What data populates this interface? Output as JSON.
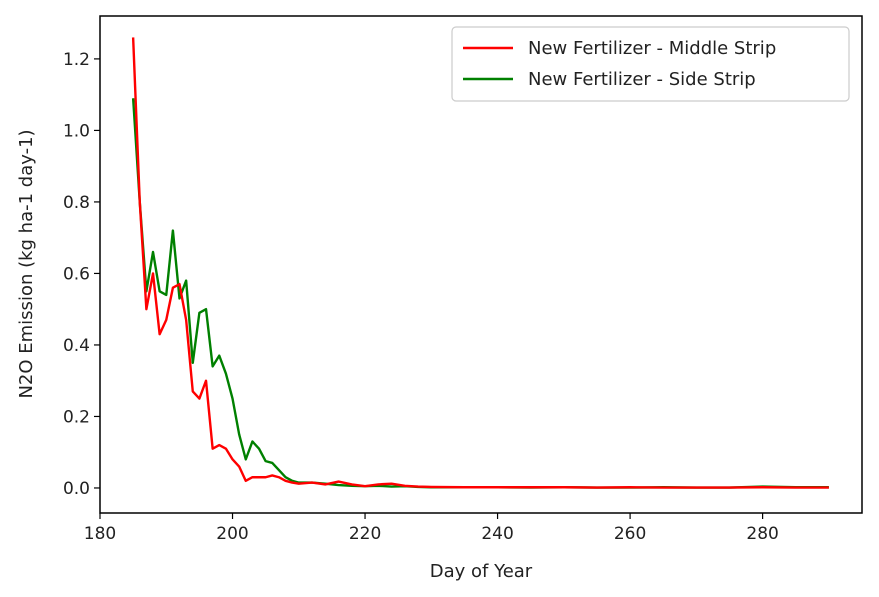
{
  "chart_data": {
    "type": "line",
    "title": "",
    "xlabel": "Day of Year",
    "ylabel": "N2O Emission (kg ha-1 day-1)",
    "xlim": [
      180,
      295
    ],
    "ylim": [
      -0.07,
      1.32
    ],
    "xticks": [
      180,
      200,
      220,
      240,
      260,
      280
    ],
    "yticks": [
      0.0,
      0.2,
      0.4,
      0.6,
      0.8,
      1.0,
      1.2
    ],
    "grid": false,
    "legend_position": "top-right",
    "series": [
      {
        "name": "New Fertilizer - Middle Strip",
        "color": "#ff0000",
        "x": [
          185,
          186,
          187,
          188,
          189,
          190,
          191,
          192,
          193,
          194,
          195,
          196,
          197,
          198,
          199,
          200,
          201,
          202,
          203,
          204,
          205,
          206,
          207,
          208,
          209,
          210,
          212,
          214,
          216,
          218,
          220,
          222,
          224,
          226,
          228,
          230,
          235,
          240,
          245,
          250,
          255,
          260,
          265,
          270,
          275,
          280,
          285,
          290
        ],
        "y": [
          1.26,
          0.8,
          0.5,
          0.6,
          0.43,
          0.47,
          0.56,
          0.57,
          0.47,
          0.27,
          0.25,
          0.3,
          0.11,
          0.12,
          0.11,
          0.08,
          0.06,
          0.02,
          0.03,
          0.03,
          0.03,
          0.035,
          0.03,
          0.02,
          0.015,
          0.012,
          0.015,
          0.01,
          0.018,
          0.01,
          0.005,
          0.01,
          0.012,
          0.006,
          0.004,
          0.003,
          0.002,
          0.002,
          0.002,
          0.002,
          0.001,
          0.002,
          0.001,
          0.001,
          0.001,
          0.002,
          0.001,
          0.001
        ]
      },
      {
        "name": "New Fertilizer - Side Strip",
        "color": "#008000",
        "x": [
          185,
          186,
          187,
          188,
          189,
          190,
          191,
          192,
          193,
          194,
          195,
          196,
          197,
          198,
          199,
          200,
          201,
          202,
          203,
          204,
          205,
          206,
          207,
          208,
          209,
          210,
          212,
          214,
          216,
          218,
          220,
          222,
          224,
          226,
          228,
          230,
          235,
          240,
          245,
          250,
          255,
          260,
          265,
          270,
          275,
          280,
          285,
          290
        ],
        "y": [
          1.09,
          0.8,
          0.55,
          0.66,
          0.55,
          0.54,
          0.72,
          0.53,
          0.58,
          0.35,
          0.49,
          0.5,
          0.34,
          0.37,
          0.32,
          0.25,
          0.15,
          0.08,
          0.13,
          0.11,
          0.075,
          0.07,
          0.05,
          0.03,
          0.02,
          0.015,
          0.015,
          0.012,
          0.008,
          0.006,
          0.005,
          0.006,
          0.004,
          0.005,
          0.003,
          0.002,
          0.002,
          0.002,
          0.001,
          0.002,
          0.001,
          0.001,
          0.002,
          0.001,
          0.001,
          0.004,
          0.002,
          0.002
        ]
      }
    ]
  }
}
